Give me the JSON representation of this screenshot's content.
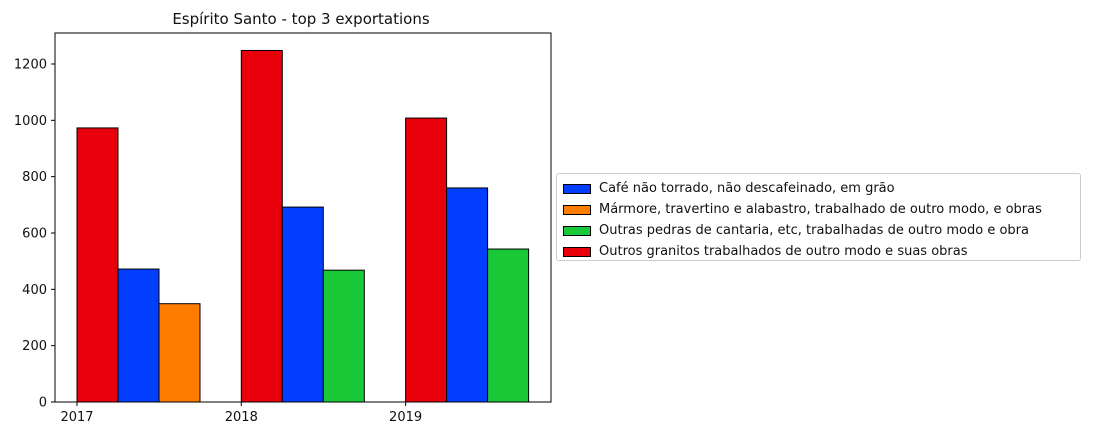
{
  "chart_data": {
    "type": "bar",
    "title": "Espírito Santo - top 3 exportations",
    "xlabel": "",
    "ylabel": "",
    "ylim": [
      0,
      1310
    ],
    "yticks": [
      0,
      200,
      400,
      600,
      800,
      1000,
      1200
    ],
    "categories": [
      "2017",
      "2018",
      "2019"
    ],
    "legend_position": "right",
    "grid": false,
    "series": [
      {
        "name": "Café não torrado, não descafeinado, em grão",
        "color": "#023eff",
        "values": [
          472,
          692,
          760
        ]
      },
      {
        "name": "Mármore, travertino e alabastro, trabalhado de outro modo, e obras",
        "color": "#ff7c00",
        "values": [
          349,
          null,
          null
        ]
      },
      {
        "name": "Outras pedras de cantaria, etc, trabalhadas de outro modo e obra",
        "color": "#1ac938",
        "values": [
          null,
          468,
          543
        ]
      },
      {
        "name": "Outros granitos trabalhados de outro modo e suas obras",
        "color": "#e8000b",
        "values": [
          973,
          1248,
          1008
        ]
      }
    ]
  }
}
